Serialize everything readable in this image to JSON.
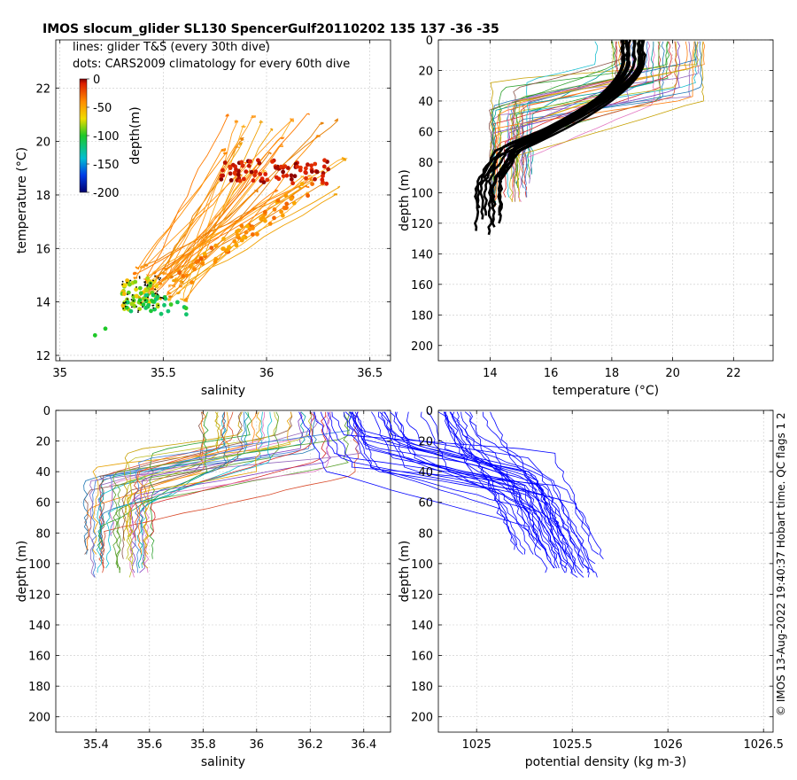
{
  "title": "IMOS slocum_glider SL130 SpencerGulf20110202 135  137  -36  -35",
  "credit": "© IMOS 13-Aug-2022 19:40:37 Hobart time. QC flags 1  2",
  "colors": {
    "ts_lines": "orange-red gradient by depth",
    "density": "#0000ff",
    "climatology_profile": "#000000"
  },
  "chart_data": [
    {
      "id": "ts",
      "type": "scatter",
      "xlabel": "salinity",
      "ylabel": "temperature (°C)",
      "xlim": [
        34.98,
        36.6
      ],
      "ylim": [
        11.8,
        23.8
      ],
      "xticks": [
        35,
        35.5,
        36,
        36.5
      ],
      "xtick_labels": [
        "35",
        "35.5",
        "36",
        "36.5"
      ],
      "yticks": [
        12,
        14,
        16,
        18,
        20,
        22
      ],
      "ytick_labels": [
        "12",
        "14",
        "16",
        "18",
        "20",
        "22"
      ],
      "legend": [
        "lines: glider T&S (every 30th dive)",
        "dots: CARS2009 climatology for every 60th dive"
      ],
      "colorbar": {
        "label": "depth(m)",
        "ticks": [
          0,
          -50,
          -100,
          -150,
          -200
        ],
        "tick_labels": [
          "0",
          "-50",
          "-100",
          "-150",
          "-200"
        ]
      },
      "grid": true
    },
    {
      "id": "temp",
      "type": "line",
      "xlabel": "temperature (°C)",
      "ylabel": "depth (m)",
      "xlim": [
        12.3,
        23.3
      ],
      "ylim": [
        210,
        0
      ],
      "xticks": [
        14,
        16,
        18,
        20,
        22
      ],
      "xtick_labels": [
        "14",
        "16",
        "18",
        "20",
        "22"
      ],
      "yticks": [
        0,
        20,
        40,
        60,
        80,
        100,
        120,
        140,
        160,
        180,
        200
      ],
      "ytick_labels": [
        "0",
        "20",
        "40",
        "60",
        "80",
        "100",
        "120",
        "140",
        "160",
        "180",
        "200"
      ],
      "grid": true
    },
    {
      "id": "sal",
      "type": "line",
      "xlabel": "salinity",
      "ylabel": "depth (m)",
      "xlim": [
        35.25,
        36.5
      ],
      "ylim": [
        210,
        0
      ],
      "xticks": [
        35.4,
        35.6,
        35.8,
        36,
        36.2,
        36.4
      ],
      "xtick_labels": [
        "35.4",
        "35.6",
        "35.8",
        "36",
        "36.2",
        "36.4"
      ],
      "yticks": [
        0,
        20,
        40,
        60,
        80,
        100,
        120,
        140,
        160,
        180,
        200
      ],
      "ytick_labels": [
        "0",
        "20",
        "40",
        "60",
        "80",
        "100",
        "120",
        "140",
        "160",
        "180",
        "200"
      ],
      "grid": true
    },
    {
      "id": "dens",
      "type": "line",
      "xlabel": "potential density (kg m-3)",
      "ylabel": "depth (m)",
      "xlim": [
        1024.8,
        1026.55
      ],
      "ylim": [
        210,
        0
      ],
      "xticks": [
        1025,
        1025.5,
        1026,
        1026.5
      ],
      "xtick_labels": [
        "1025",
        "1025.5",
        "1026",
        "1026.5"
      ],
      "yticks": [
        0,
        20,
        40,
        60,
        80,
        100,
        120,
        140,
        160,
        180,
        200
      ],
      "ytick_labels": [
        "0",
        "20",
        "40",
        "60",
        "80",
        "100",
        "120",
        "140",
        "160",
        "180",
        "200"
      ],
      "grid": true
    }
  ]
}
